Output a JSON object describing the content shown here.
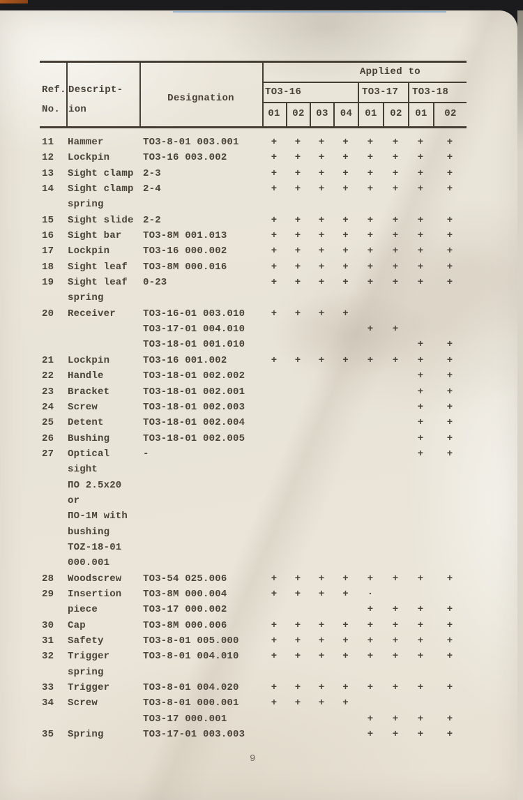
{
  "page": {
    "number": "9"
  },
  "table": {
    "header": {
      "ref_no": "Ref.\nNo.",
      "description": "Descript-\nion",
      "designation": "Designation",
      "applied_to": "Applied to",
      "models": [
        {
          "label": "TO3-16",
          "subcols": [
            "01",
            "02",
            "03",
            "04"
          ]
        },
        {
          "label": "TO3-17",
          "subcols": [
            "01",
            "02"
          ]
        },
        {
          "label": "TO3-18",
          "subcols": [
            "01",
            "02"
          ]
        }
      ]
    },
    "rows": [
      {
        "ref": "11",
        "desc": "Hammer",
        "desig": "TO3-8-01 003.001",
        "marks": [
          "+",
          "+",
          "+",
          "+",
          "+",
          "+",
          "+",
          "+"
        ]
      },
      {
        "ref": "12",
        "desc": "Lockpin",
        "desig": "TO3-16 003.002",
        "marks": [
          "+",
          "+",
          "+",
          "+",
          "+",
          "+",
          "+",
          "+"
        ]
      },
      {
        "ref": "13",
        "desc": "Sight clamp",
        "desig": "2-3",
        "marks": [
          "+",
          "+",
          "+",
          "+",
          "+",
          "+",
          "+",
          "+"
        ]
      },
      {
        "ref": "14",
        "desc": "Sight clamp",
        "desig": "2-4",
        "marks": [
          "+",
          "+",
          "+",
          "+",
          "+",
          "+",
          "+",
          "+"
        ]
      },
      {
        "ref": "",
        "desc": "spring",
        "desig": "",
        "marks": [
          "",
          "",
          "",
          "",
          "",
          "",
          "",
          ""
        ]
      },
      {
        "ref": "15",
        "desc": "Sight slide",
        "desig": "2-2",
        "marks": [
          "+",
          "+",
          "+",
          "+",
          "+",
          "+",
          "+",
          "+"
        ]
      },
      {
        "ref": "16",
        "desc": "Sight bar",
        "desig": "TO3-8M 001.013",
        "marks": [
          "+",
          "+",
          "+",
          "+",
          "+",
          "+",
          "+",
          "+"
        ]
      },
      {
        "ref": "17",
        "desc": "Lockpin",
        "desig": "TO3-16 000.002",
        "marks": [
          "+",
          "+",
          "+",
          "+",
          "+",
          "+",
          "+",
          "+"
        ]
      },
      {
        "ref": "18",
        "desc": "Sight leaf",
        "desig": "TO3-8M 000.016",
        "marks": [
          "+",
          "+",
          "+",
          "+",
          "+",
          "+",
          "+",
          "+"
        ]
      },
      {
        "ref": "19",
        "desc": "Sight leaf",
        "desig": "0-23",
        "marks": [
          "+",
          "+",
          "+",
          "+",
          "+",
          "+",
          "+",
          "+"
        ]
      },
      {
        "ref": "",
        "desc": "spring",
        "desig": "",
        "marks": [
          "",
          "",
          "",
          "",
          "",
          "",
          "",
          ""
        ]
      },
      {
        "ref": "20",
        "desc": "Receiver",
        "desig": "TO3-16-01 003.010",
        "marks": [
          "+",
          "+",
          "+",
          "+",
          "",
          "",
          "",
          ""
        ]
      },
      {
        "ref": "",
        "desc": "",
        "desig": "TO3-17-01 004.010",
        "marks": [
          "",
          "",
          "",
          "",
          "+",
          "+",
          "",
          ""
        ]
      },
      {
        "ref": "",
        "desc": "",
        "desig": "TO3-18-01 001.010",
        "marks": [
          "",
          "",
          "",
          "",
          "",
          "",
          "+",
          "+"
        ]
      },
      {
        "ref": "21",
        "desc": "Lockpin",
        "desig": "TO3-16 001.002",
        "marks": [
          "+",
          "+",
          "+",
          "+",
          "+",
          "+",
          "+",
          "+"
        ]
      },
      {
        "ref": "22",
        "desc": "Handle",
        "desig": "TO3-18-01 002.002",
        "marks": [
          "",
          "",
          "",
          "",
          "",
          "",
          "+",
          "+"
        ]
      },
      {
        "ref": "23",
        "desc": "Bracket",
        "desig": "TO3-18-01 002.001",
        "marks": [
          "",
          "",
          "",
          "",
          "",
          "",
          "+",
          "+"
        ]
      },
      {
        "ref": "24",
        "desc": "Screw",
        "desig": "TO3-18-01 002.003",
        "marks": [
          "",
          "",
          "",
          "",
          "",
          "",
          "+",
          "+"
        ]
      },
      {
        "ref": "25",
        "desc": "Detent",
        "desig": "TO3-18-01 002.004",
        "marks": [
          "",
          "",
          "",
          "",
          "",
          "",
          "+",
          "+"
        ]
      },
      {
        "ref": "26",
        "desc": "Bushing",
        "desig": "TO3-18-01 002.005",
        "marks": [
          "",
          "",
          "",
          "",
          "",
          "",
          "+",
          "+"
        ]
      },
      {
        "ref": "27",
        "desc": "Optical",
        "desig": "-",
        "marks": [
          "",
          "",
          "",
          "",
          "",
          "",
          "+",
          "+"
        ]
      },
      {
        "ref": "",
        "desc": "sight",
        "desig": "",
        "marks": [
          "",
          "",
          "",
          "",
          "",
          "",
          "",
          ""
        ]
      },
      {
        "ref": "",
        "desc": "ПО 2.5x20",
        "desig": "",
        "marks": [
          "",
          "",
          "",
          "",
          "",
          "",
          "",
          ""
        ]
      },
      {
        "ref": "",
        "desc": "or",
        "desig": "",
        "marks": [
          "",
          "",
          "",
          "",
          "",
          "",
          "",
          ""
        ]
      },
      {
        "ref": "",
        "desc": "ПО-1М with",
        "desig": "",
        "marks": [
          "",
          "",
          "",
          "",
          "",
          "",
          "",
          ""
        ]
      },
      {
        "ref": "",
        "desc": "bushing",
        "desig": "",
        "marks": [
          "",
          "",
          "",
          "",
          "",
          "",
          "",
          ""
        ]
      },
      {
        "ref": "",
        "desc": "TOZ-18-01",
        "desig": "",
        "marks": [
          "",
          "",
          "",
          "",
          "",
          "",
          "",
          ""
        ]
      },
      {
        "ref": "",
        "desc": "000.001",
        "desig": "",
        "marks": [
          "",
          "",
          "",
          "",
          "",
          "",
          "",
          ""
        ]
      },
      {
        "ref": "28",
        "desc": "Woodscrew",
        "desig": "TO3-54 025.006",
        "marks": [
          "+",
          "+",
          "+",
          "+",
          "+",
          "+",
          "+",
          "+"
        ]
      },
      {
        "ref": "29",
        "desc": "Insertion",
        "desig": "TO3-8M 000.004",
        "marks": [
          "+",
          "+",
          "+",
          "+",
          "·",
          "",
          "",
          ""
        ]
      },
      {
        "ref": "",
        "desc": "piece",
        "desig": "TO3-17 000.002",
        "marks": [
          "",
          "",
          "",
          "",
          "+",
          "+",
          "+",
          "+"
        ]
      },
      {
        "ref": "30",
        "desc": "Cap",
        "desig": "TO3-8M 000.006",
        "marks": [
          "+",
          "+",
          "+",
          "+",
          "+",
          "+",
          "+",
          "+"
        ]
      },
      {
        "ref": "31",
        "desc": "Safety",
        "desig": "TO3-8-01 005.000",
        "marks": [
          "+",
          "+",
          "+",
          "+",
          "+",
          "+",
          "+",
          "+"
        ]
      },
      {
        "ref": "32",
        "desc": "Trigger",
        "desig": "TO3-8-01 004.010",
        "marks": [
          "+",
          "+",
          "+",
          "+",
          "+",
          "+",
          "+",
          "+"
        ]
      },
      {
        "ref": "",
        "desc": "spring",
        "desig": "",
        "marks": [
          "",
          "",
          "",
          "",
          "",
          "",
          "",
          ""
        ]
      },
      {
        "ref": "33",
        "desc": "Trigger",
        "desig": "TO3-8-01 004.020",
        "marks": [
          "+",
          "+",
          "+",
          "+",
          "+",
          "+",
          "+",
          "+"
        ]
      },
      {
        "ref": "34",
        "desc": "Screw",
        "desig": "TO3-8-01 000.001",
        "marks": [
          "+",
          "+",
          "+",
          "+",
          "",
          "",
          "",
          ""
        ]
      },
      {
        "ref": "",
        "desc": "",
        "desig": "TO3-17 000.001",
        "marks": [
          "",
          "",
          "",
          "",
          "+",
          "+",
          "+",
          "+"
        ]
      },
      {
        "ref": "35",
        "desc": "Spring",
        "desig": "TO3-17-01 003.003",
        "marks": [
          "",
          "",
          "",
          "",
          "+",
          "+",
          "+",
          "+"
        ]
      }
    ]
  }
}
